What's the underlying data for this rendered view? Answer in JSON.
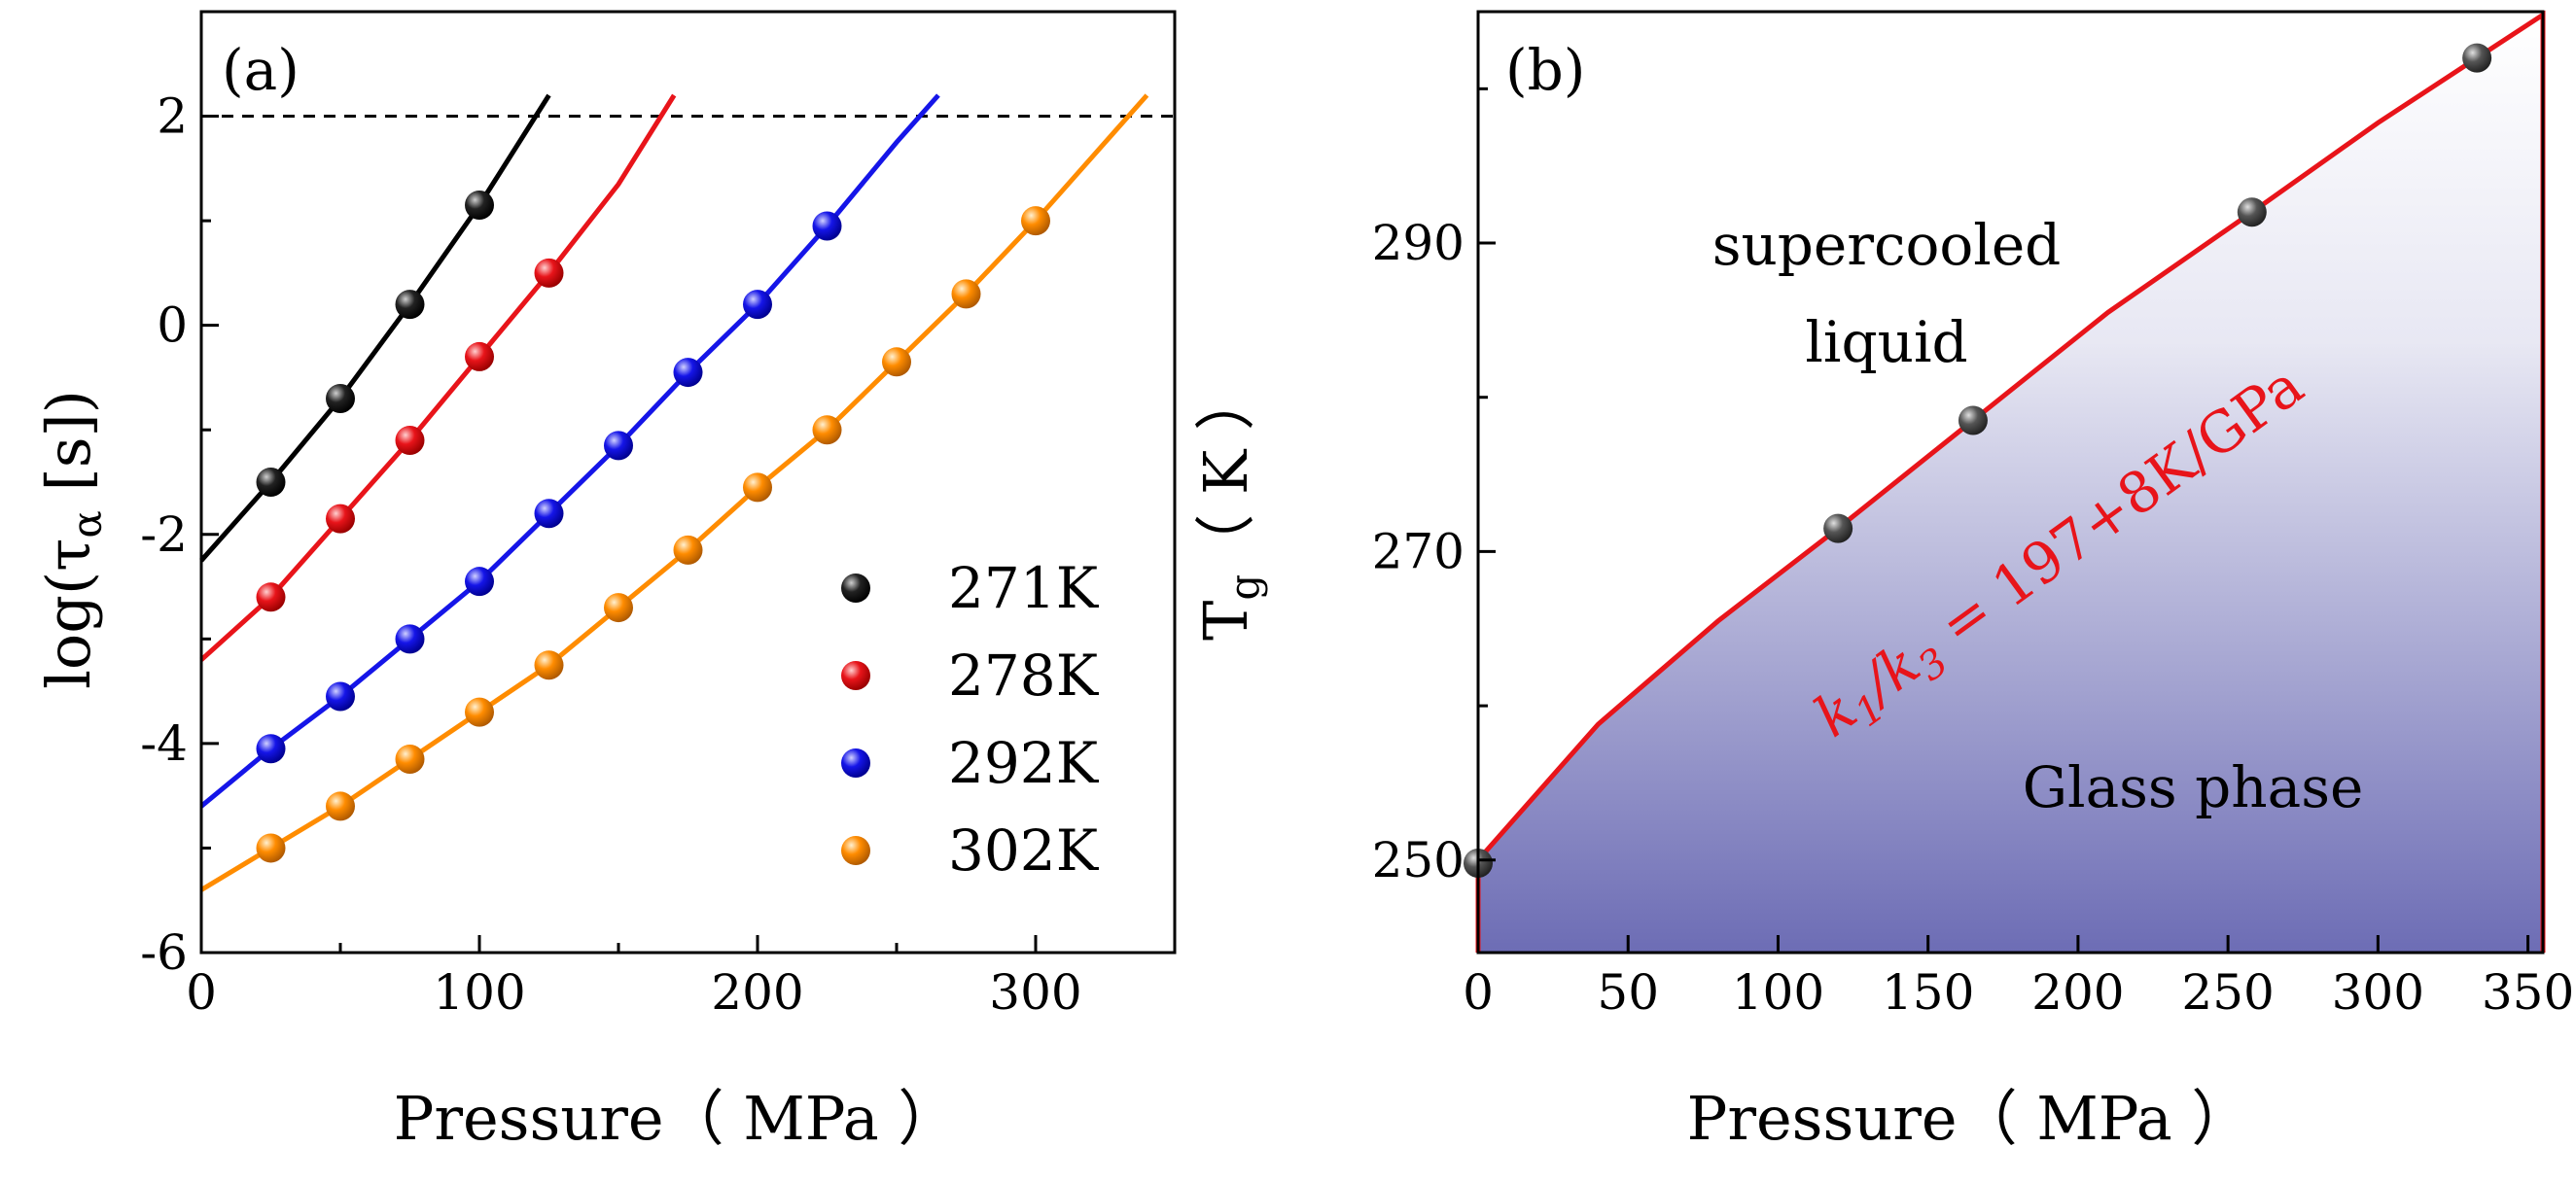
{
  "chart_data": [
    {
      "panel": "(a)",
      "type": "scatter",
      "xlabel": "Pressure（ MPa ）",
      "ylabel": "log(τα [s])",
      "ylabel_main": "log(τ",
      "ylabel_sub": "α",
      "ylabel_rest": " [s])",
      "xlim": [
        0,
        350
      ],
      "ylim": [
        -6,
        3
      ],
      "xticks": [
        0,
        100,
        200,
        300
      ],
      "yticks": [
        -6,
        -4,
        -2,
        0,
        2
      ],
      "reference_line": {
        "y": 2,
        "style": "dashed"
      },
      "legend_position": "bottom-right",
      "series": [
        {
          "name": "271K",
          "color": "#000000",
          "x": [
            25,
            50,
            75,
            100
          ],
          "y": [
            -1.5,
            -0.7,
            0.2,
            1.15
          ],
          "fit_x": [
            0,
            25,
            50,
            75,
            100,
            125
          ],
          "fit_y": [
            -2.25,
            -1.5,
            -0.7,
            0.2,
            1.15,
            2.2
          ]
        },
        {
          "name": "278K",
          "color": "#e8141a",
          "x": [
            25,
            50,
            75,
            100,
            125
          ],
          "y": [
            -2.6,
            -1.85,
            -1.1,
            -0.3,
            0.5
          ],
          "fit_x": [
            0,
            25,
            50,
            75,
            100,
            125,
            150,
            170
          ],
          "fit_y": [
            -3.2,
            -2.6,
            -1.85,
            -1.1,
            -0.3,
            0.5,
            1.35,
            2.2
          ]
        },
        {
          "name": "292K",
          "color": "#1515e8",
          "x": [
            25,
            50,
            75,
            100,
            125,
            150,
            175,
            200,
            225
          ],
          "y": [
            -4.05,
            -3.55,
            -3.0,
            -2.45,
            -1.8,
            -1.15,
            -0.45,
            0.2,
            0.95
          ],
          "fit_x": [
            0,
            25,
            50,
            75,
            100,
            125,
            150,
            175,
            200,
            225,
            250,
            265
          ],
          "fit_y": [
            -4.6,
            -4.05,
            -3.55,
            -3.0,
            -2.45,
            -1.8,
            -1.15,
            -0.45,
            0.2,
            0.95,
            1.75,
            2.2
          ]
        },
        {
          "name": "302K",
          "color": "#ff8c00",
          "x": [
            25,
            50,
            75,
            100,
            125,
            150,
            175,
            200,
            225,
            250,
            275,
            300
          ],
          "y": [
            -5.0,
            -4.6,
            -4.15,
            -3.7,
            -3.25,
            -2.7,
            -2.15,
            -1.55,
            -1.0,
            -0.35,
            0.3,
            1.0
          ],
          "fit_x": [
            0,
            25,
            50,
            75,
            100,
            125,
            150,
            175,
            200,
            225,
            250,
            275,
            300,
            325,
            340
          ],
          "fit_y": [
            -5.4,
            -5.0,
            -4.6,
            -4.15,
            -3.7,
            -3.25,
            -2.7,
            -2.15,
            -1.55,
            -1.0,
            -0.35,
            0.3,
            1.0,
            1.75,
            2.2
          ]
        }
      ]
    },
    {
      "panel": "(b)",
      "type": "scatter",
      "xlabel": "Pressure（ MPa ）",
      "ylabel": "Tg（ K ）",
      "ylabel_main": "T",
      "ylabel_sub": "g",
      "ylabel_rest": "（ K ）",
      "xlim": [
        0,
        355
      ],
      "ylim": [
        244,
        305
      ],
      "xticks": [
        0,
        50,
        100,
        150,
        200,
        250,
        300,
        350
      ],
      "yticks": [
        250,
        270,
        290
      ],
      "minor_yticks": [
        260,
        280,
        300
      ],
      "points": {
        "x": [
          0,
          120,
          165,
          258,
          333
        ],
        "y": [
          249.8,
          271.5,
          278.5,
          292,
          302
        ]
      },
      "fit": {
        "x": [
          0,
          40,
          80,
          120,
          165,
          210,
          258,
          300,
          333,
          355
        ],
        "y": [
          250,
          258.8,
          265.5,
          271.5,
          278.5,
          285.5,
          292,
          297.8,
          302,
          304.8
        ],
        "color": "#e8141a"
      },
      "annotations": {
        "liquid_region": [
          "supercooled",
          "liquid"
        ],
        "glass_region": "Glass phase",
        "equation_k1": "k",
        "equation_sub1": "1",
        "equation_slash": "/k",
        "equation_sub3": "3",
        "equation_rest": " = 197+8K/GPa",
        "glass_fill_color": "#3c3c9c"
      }
    }
  ]
}
